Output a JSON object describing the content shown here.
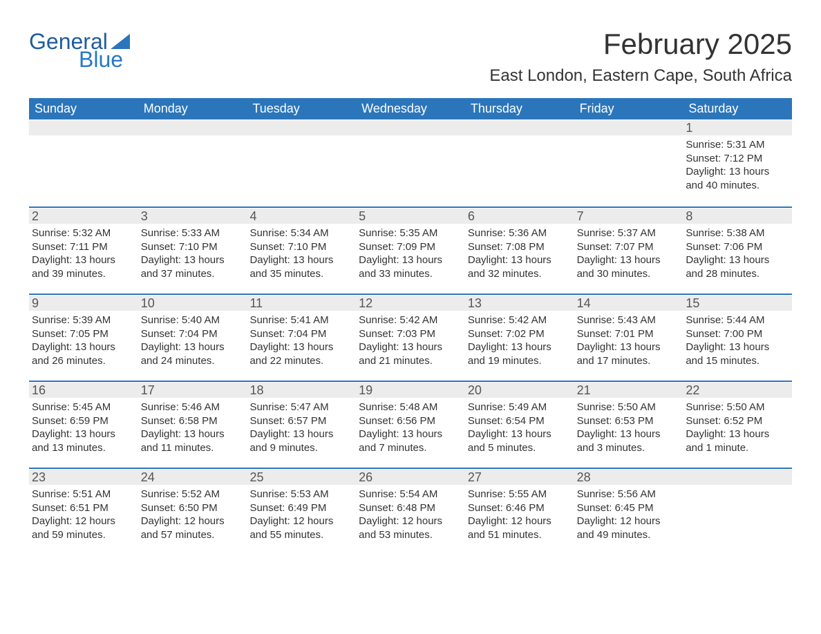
{
  "logo": {
    "text1": "General",
    "text2": "Blue",
    "color1": "#1f5c9e",
    "color2": "#2779c4"
  },
  "title": "February 2025",
  "location": "East London, Eastern Cape, South Africa",
  "colors": {
    "header_bg": "#2b76bb",
    "header_text": "#ffffff",
    "row_band": "#ececec",
    "border": "#2b76bb",
    "page_bg": "#ffffff",
    "text": "#333333"
  },
  "typography": {
    "title_fontsize": 42,
    "location_fontsize": 24,
    "header_fontsize": 18,
    "daynum_fontsize": 18,
    "detail_fontsize": 15
  },
  "day_names": [
    "Sunday",
    "Monday",
    "Tuesday",
    "Wednesday",
    "Thursday",
    "Friday",
    "Saturday"
  ],
  "weeks": [
    [
      null,
      null,
      null,
      null,
      null,
      null,
      {
        "n": "1",
        "sunrise": "Sunrise: 5:31 AM",
        "sunset": "Sunset: 7:12 PM",
        "day1": "Daylight: 13 hours",
        "day2": "and 40 minutes."
      }
    ],
    [
      {
        "n": "2",
        "sunrise": "Sunrise: 5:32 AM",
        "sunset": "Sunset: 7:11 PM",
        "day1": "Daylight: 13 hours",
        "day2": "and 39 minutes."
      },
      {
        "n": "3",
        "sunrise": "Sunrise: 5:33 AM",
        "sunset": "Sunset: 7:10 PM",
        "day1": "Daylight: 13 hours",
        "day2": "and 37 minutes."
      },
      {
        "n": "4",
        "sunrise": "Sunrise: 5:34 AM",
        "sunset": "Sunset: 7:10 PM",
        "day1": "Daylight: 13 hours",
        "day2": "and 35 minutes."
      },
      {
        "n": "5",
        "sunrise": "Sunrise: 5:35 AM",
        "sunset": "Sunset: 7:09 PM",
        "day1": "Daylight: 13 hours",
        "day2": "and 33 minutes."
      },
      {
        "n": "6",
        "sunrise": "Sunrise: 5:36 AM",
        "sunset": "Sunset: 7:08 PM",
        "day1": "Daylight: 13 hours",
        "day2": "and 32 minutes."
      },
      {
        "n": "7",
        "sunrise": "Sunrise: 5:37 AM",
        "sunset": "Sunset: 7:07 PM",
        "day1": "Daylight: 13 hours",
        "day2": "and 30 minutes."
      },
      {
        "n": "8",
        "sunrise": "Sunrise: 5:38 AM",
        "sunset": "Sunset: 7:06 PM",
        "day1": "Daylight: 13 hours",
        "day2": "and 28 minutes."
      }
    ],
    [
      {
        "n": "9",
        "sunrise": "Sunrise: 5:39 AM",
        "sunset": "Sunset: 7:05 PM",
        "day1": "Daylight: 13 hours",
        "day2": "and 26 minutes."
      },
      {
        "n": "10",
        "sunrise": "Sunrise: 5:40 AM",
        "sunset": "Sunset: 7:04 PM",
        "day1": "Daylight: 13 hours",
        "day2": "and 24 minutes."
      },
      {
        "n": "11",
        "sunrise": "Sunrise: 5:41 AM",
        "sunset": "Sunset: 7:04 PM",
        "day1": "Daylight: 13 hours",
        "day2": "and 22 minutes."
      },
      {
        "n": "12",
        "sunrise": "Sunrise: 5:42 AM",
        "sunset": "Sunset: 7:03 PM",
        "day1": "Daylight: 13 hours",
        "day2": "and 21 minutes."
      },
      {
        "n": "13",
        "sunrise": "Sunrise: 5:42 AM",
        "sunset": "Sunset: 7:02 PM",
        "day1": "Daylight: 13 hours",
        "day2": "and 19 minutes."
      },
      {
        "n": "14",
        "sunrise": "Sunrise: 5:43 AM",
        "sunset": "Sunset: 7:01 PM",
        "day1": "Daylight: 13 hours",
        "day2": "and 17 minutes."
      },
      {
        "n": "15",
        "sunrise": "Sunrise: 5:44 AM",
        "sunset": "Sunset: 7:00 PM",
        "day1": "Daylight: 13 hours",
        "day2": "and 15 minutes."
      }
    ],
    [
      {
        "n": "16",
        "sunrise": "Sunrise: 5:45 AM",
        "sunset": "Sunset: 6:59 PM",
        "day1": "Daylight: 13 hours",
        "day2": "and 13 minutes."
      },
      {
        "n": "17",
        "sunrise": "Sunrise: 5:46 AM",
        "sunset": "Sunset: 6:58 PM",
        "day1": "Daylight: 13 hours",
        "day2": "and 11 minutes."
      },
      {
        "n": "18",
        "sunrise": "Sunrise: 5:47 AM",
        "sunset": "Sunset: 6:57 PM",
        "day1": "Daylight: 13 hours",
        "day2": "and 9 minutes."
      },
      {
        "n": "19",
        "sunrise": "Sunrise: 5:48 AM",
        "sunset": "Sunset: 6:56 PM",
        "day1": "Daylight: 13 hours",
        "day2": "and 7 minutes."
      },
      {
        "n": "20",
        "sunrise": "Sunrise: 5:49 AM",
        "sunset": "Sunset: 6:54 PM",
        "day1": "Daylight: 13 hours",
        "day2": "and 5 minutes."
      },
      {
        "n": "21",
        "sunrise": "Sunrise: 5:50 AM",
        "sunset": "Sunset: 6:53 PM",
        "day1": "Daylight: 13 hours",
        "day2": "and 3 minutes."
      },
      {
        "n": "22",
        "sunrise": "Sunrise: 5:50 AM",
        "sunset": "Sunset: 6:52 PM",
        "day1": "Daylight: 13 hours",
        "day2": "and 1 minute."
      }
    ],
    [
      {
        "n": "23",
        "sunrise": "Sunrise: 5:51 AM",
        "sunset": "Sunset: 6:51 PM",
        "day1": "Daylight: 12 hours",
        "day2": "and 59 minutes."
      },
      {
        "n": "24",
        "sunrise": "Sunrise: 5:52 AM",
        "sunset": "Sunset: 6:50 PM",
        "day1": "Daylight: 12 hours",
        "day2": "and 57 minutes."
      },
      {
        "n": "25",
        "sunrise": "Sunrise: 5:53 AM",
        "sunset": "Sunset: 6:49 PM",
        "day1": "Daylight: 12 hours",
        "day2": "and 55 minutes."
      },
      {
        "n": "26",
        "sunrise": "Sunrise: 5:54 AM",
        "sunset": "Sunset: 6:48 PM",
        "day1": "Daylight: 12 hours",
        "day2": "and 53 minutes."
      },
      {
        "n": "27",
        "sunrise": "Sunrise: 5:55 AM",
        "sunset": "Sunset: 6:46 PM",
        "day1": "Daylight: 12 hours",
        "day2": "and 51 minutes."
      },
      {
        "n": "28",
        "sunrise": "Sunrise: 5:56 AM",
        "sunset": "Sunset: 6:45 PM",
        "day1": "Daylight: 12 hours",
        "day2": "and 49 minutes."
      },
      null
    ]
  ]
}
